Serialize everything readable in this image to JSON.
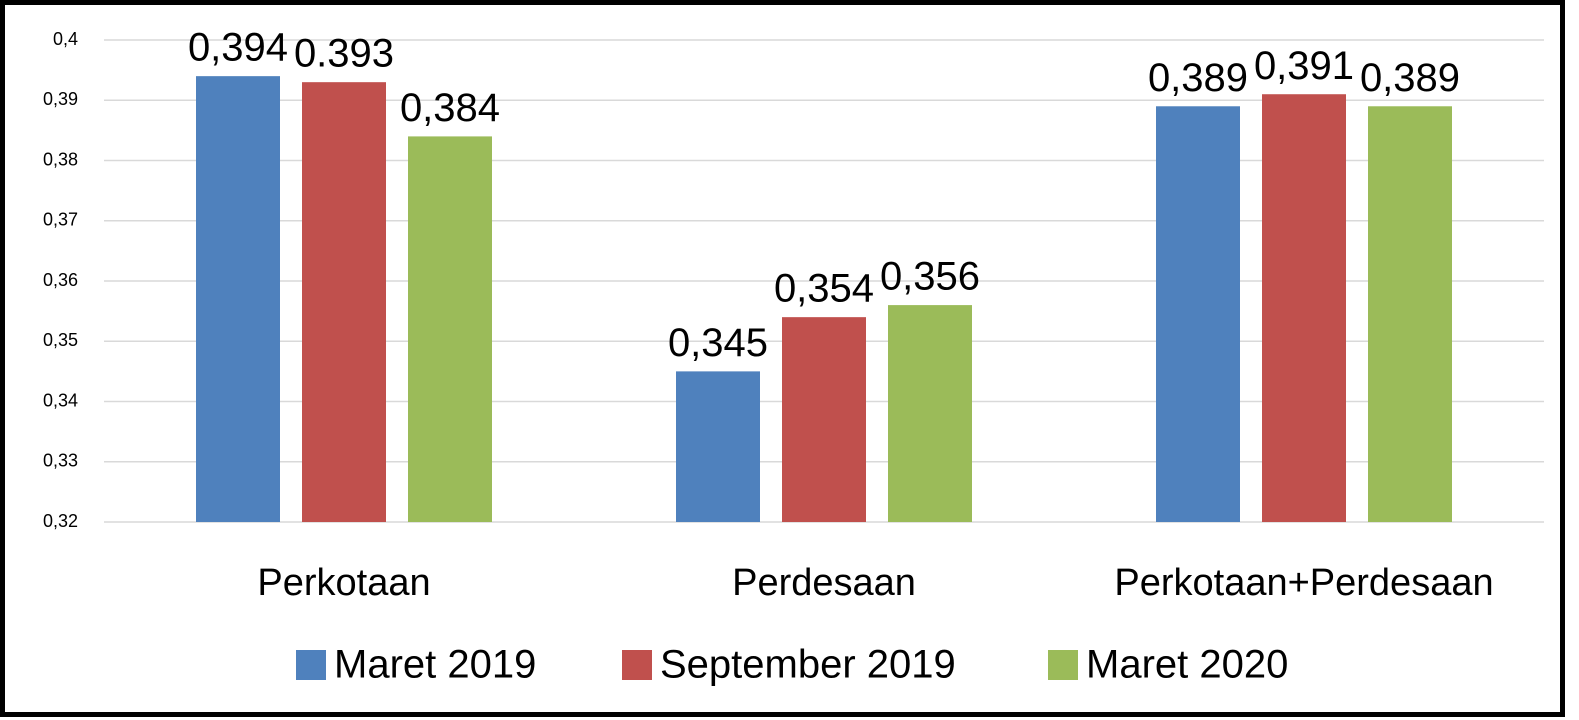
{
  "chart_data": {
    "type": "bar",
    "categories": [
      "Perkotaan",
      "Perdesaan",
      "Perkotaan+Perdesaan"
    ],
    "series": [
      {
        "name": "Maret 2019",
        "color": "#4f81bd",
        "values": [
          0.394,
          0.345,
          0.389
        ],
        "value_labels": [
          "0,394",
          "0,345",
          "0,389"
        ]
      },
      {
        "name": "September 2019",
        "color": "#c0504d",
        "values": [
          0.393,
          0.354,
          0.391
        ],
        "value_labels": [
          "0.393",
          "0,354",
          "0,391"
        ]
      },
      {
        "name": "Maret 2020",
        "color": "#9bbb59",
        "values": [
          0.384,
          0.356,
          0.389
        ],
        "value_labels": [
          "0,384",
          "0,356",
          "0,389"
        ]
      }
    ],
    "ylim": [
      0.32,
      0.4
    ],
    "yticks": [
      {
        "value": 0.32,
        "label": "0,32"
      },
      {
        "value": 0.33,
        "label": "0,33"
      },
      {
        "value": 0.34,
        "label": "0,34"
      },
      {
        "value": 0.35,
        "label": "0,35"
      },
      {
        "value": 0.36,
        "label": "0,36"
      },
      {
        "value": 0.37,
        "label": "0,37"
      },
      {
        "value": 0.38,
        "label": "0,38"
      },
      {
        "value": 0.39,
        "label": "0,39"
      },
      {
        "value": 0.4,
        "label": "0,4"
      }
    ],
    "grid": true,
    "legend": "bottom"
  }
}
